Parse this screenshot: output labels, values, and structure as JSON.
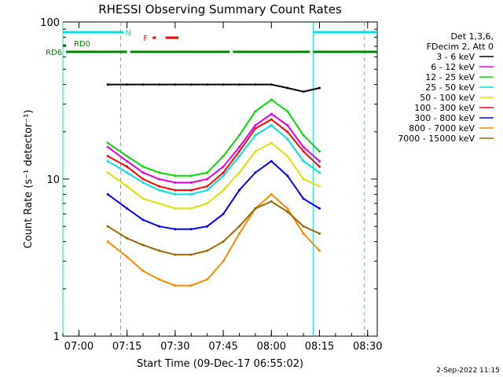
{
  "chart_data": {
    "type": "line",
    "title": "RHESSI Observing Summary Count Rates",
    "xlabel": "Start Time (09-Dec-17 06:55:02)",
    "ylabel": "Count Rate (s⁻¹ detector⁻¹)",
    "y_scale": "log",
    "ylim": [
      1,
      100
    ],
    "xlim": [
      "06:55",
      "08:33"
    ],
    "x_ticks": [
      "07:00",
      "07:15",
      "07:30",
      "07:45",
      "08:00",
      "08:15",
      "08:30"
    ],
    "y_ticks": [
      "1",
      "10",
      "100"
    ],
    "grid": false,
    "legend_position": "right",
    "legend_header": [
      "Det 1,3,6,",
      "FDecim 2, Att 0"
    ],
    "footer_date": "2-Sep-2022 11:15",
    "x": [
      "07:09",
      "07:15",
      "07:20",
      "07:25",
      "07:30",
      "07:35",
      "07:40",
      "07:45",
      "07:50",
      "07:55",
      "08:00",
      "08:05",
      "08:10",
      "08:15"
    ],
    "series": [
      {
        "name": "3 - 6 keV",
        "color": "#000000",
        "values": [
          40,
          40,
          40,
          40,
          40,
          40,
          40,
          40,
          40,
          40,
          40,
          38,
          36,
          38
        ]
      },
      {
        "name": "6 - 12 keV",
        "color": "#e000e0",
        "values": [
          16,
          13,
          11,
          10,
          9.5,
          9.5,
          10,
          12,
          16,
          22,
          26,
          22,
          16,
          13
        ]
      },
      {
        "name": "12 - 25 keV",
        "color": "#00dd00",
        "values": [
          17,
          14,
          12,
          11,
          10.5,
          10.5,
          11,
          14,
          19,
          27,
          32,
          27,
          19,
          15
        ]
      },
      {
        "name": "25 - 50 keV",
        "color": "#00e0e0",
        "values": [
          13,
          11,
          9.5,
          8.5,
          8,
          8,
          8.5,
          10.5,
          14,
          19,
          22,
          18,
          13,
          11
        ]
      },
      {
        "name": "50 - 100 keV",
        "color": "#e0e000",
        "values": [
          11,
          9,
          7.5,
          7,
          6.5,
          6.5,
          7,
          8.5,
          11,
          15,
          17,
          14,
          10,
          9
        ]
      },
      {
        "name": "100 - 300 keV",
        "color": "#ff0000",
        "values": [
          14,
          12,
          10,
          9,
          8.5,
          8.5,
          9,
          11,
          15,
          21,
          24,
          20,
          15,
          12
        ]
      },
      {
        "name": "300 - 800 keV",
        "color": "#0000ff",
        "values": [
          8,
          6.5,
          5.5,
          5,
          4.8,
          4.8,
          5,
          6,
          8.5,
          11,
          13,
          10.5,
          7.5,
          6.5
        ]
      },
      {
        "name": "800 - 7000 keV",
        "color": "#ff8800",
        "values": [
          4,
          3.2,
          2.6,
          2.3,
          2.1,
          2.1,
          2.3,
          3,
          4.5,
          6.5,
          8,
          6.5,
          4.5,
          3.5
        ]
      },
      {
        "name": "7000 - 15000 keV",
        "color": "#996600",
        "values": [
          5,
          4.2,
          3.8,
          3.5,
          3.3,
          3.3,
          3.5,
          4,
          5,
          6.5,
          7.2,
          6.2,
          5,
          4.5
        ]
      }
    ],
    "annotations": [
      {
        "label": "N",
        "color": "#00e0e0",
        "segments": [
          [
            "06:55",
            "07:14"
          ],
          [
            "08:13",
            "08:33"
          ]
        ]
      },
      {
        "label": "RD0",
        "color": "#008800",
        "segments": [
          [
            "06:55",
            "06:56"
          ]
        ]
      },
      {
        "label": "RD6",
        "color": "#008800",
        "segments": [
          [
            "06:56",
            "07:15"
          ],
          [
            "07:16",
            "07:47"
          ],
          [
            "07:48",
            "08:12"
          ],
          [
            "08:13",
            "08:33"
          ]
        ]
      },
      {
        "label": "F",
        "color": "#ff0000",
        "segments": [
          [
            "07:23",
            "07:24"
          ],
          [
            "07:27",
            "07:31"
          ]
        ]
      }
    ],
    "vertical_lines": [
      {
        "x": "06:55",
        "color": "#00e0e0",
        "style": "solid"
      },
      {
        "x": "07:13",
        "color": "#00e0e0",
        "style": "dashed"
      },
      {
        "x": "08:13",
        "color": "#00e0e0",
        "style": "solid"
      },
      {
        "x": "08:29",
        "color": "#00e0e0",
        "style": "dashed"
      }
    ]
  }
}
